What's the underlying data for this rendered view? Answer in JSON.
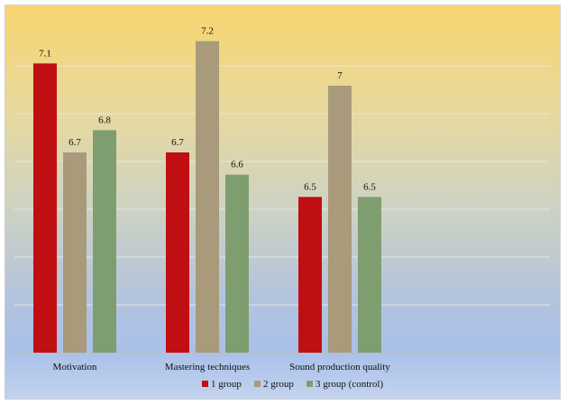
{
  "chart_data": {
    "type": "bar",
    "title": "",
    "xlabel": "",
    "ylabel": "",
    "categories": [
      "Motivation",
      "Mastering techniques",
      "Sound production quality"
    ],
    "series": [
      {
        "name": "1 group",
        "color": "#c00f12",
        "values": [
          7.1,
          6.7,
          6.5
        ]
      },
      {
        "name": "2 group",
        "color": "#a89a7a",
        "values": [
          6.7,
          7.2,
          7
        ]
      },
      {
        "name": "3 group (control)",
        "color": "#7f9e70",
        "values": [
          6.8,
          6.6,
          6.5
        ]
      }
    ],
    "data_labels": [
      [
        "7.1",
        "6.7",
        "6.5"
      ],
      [
        "6.7",
        "7.2",
        "7"
      ],
      [
        "6.8",
        "6.6",
        "6.5"
      ]
    ],
    "ylim": [
      5.8,
      7.3
    ],
    "gridlines": true,
    "legend_position": "bottom"
  }
}
